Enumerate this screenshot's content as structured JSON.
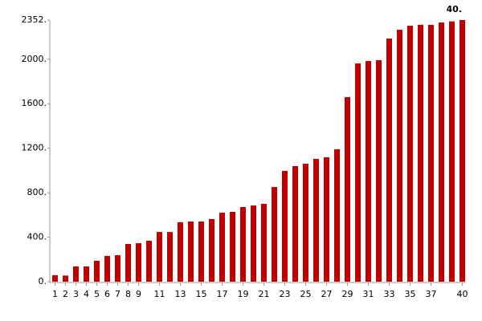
{
  "chart_data": {
    "type": "bar",
    "annotation": "40.",
    "categories": [
      "1",
      "2",
      "3",
      "4",
      "5",
      "6",
      "7",
      "8",
      "9",
      null,
      "11",
      null,
      "13",
      null,
      "15",
      null,
      "17",
      null,
      "19",
      null,
      "21",
      null,
      "23",
      null,
      "25",
      null,
      "27",
      null,
      "29",
      null,
      "31",
      null,
      "33",
      null,
      "35",
      null,
      "37",
      null,
      null,
      "40"
    ],
    "values": [
      58,
      55,
      137,
      137,
      188,
      231,
      238,
      339,
      346,
      368,
      447,
      447,
      534,
      541,
      541,
      563,
      620,
      628,
      671,
      685,
      700,
      851,
      996,
      1039,
      1061,
      1104,
      1118,
      1190,
      1659,
      1962,
      1984,
      1991,
      2186,
      2265,
      2301,
      2309,
      2309,
      2330,
      2340,
      2352
    ],
    "color": "#c00000",
    "ylim": [
      0,
      2352
    ],
    "yticks": [
      {
        "value": 0,
        "label": "0."
      },
      {
        "value": 400,
        "label": "400."
      },
      {
        "value": 800,
        "label": "800."
      },
      {
        "value": 1200,
        "label": "1200."
      },
      {
        "value": 1600,
        "label": "1600."
      },
      {
        "value": 2000,
        "label": "2000."
      },
      {
        "value": 2352,
        "label": "2352."
      }
    ],
    "grid": false
  }
}
